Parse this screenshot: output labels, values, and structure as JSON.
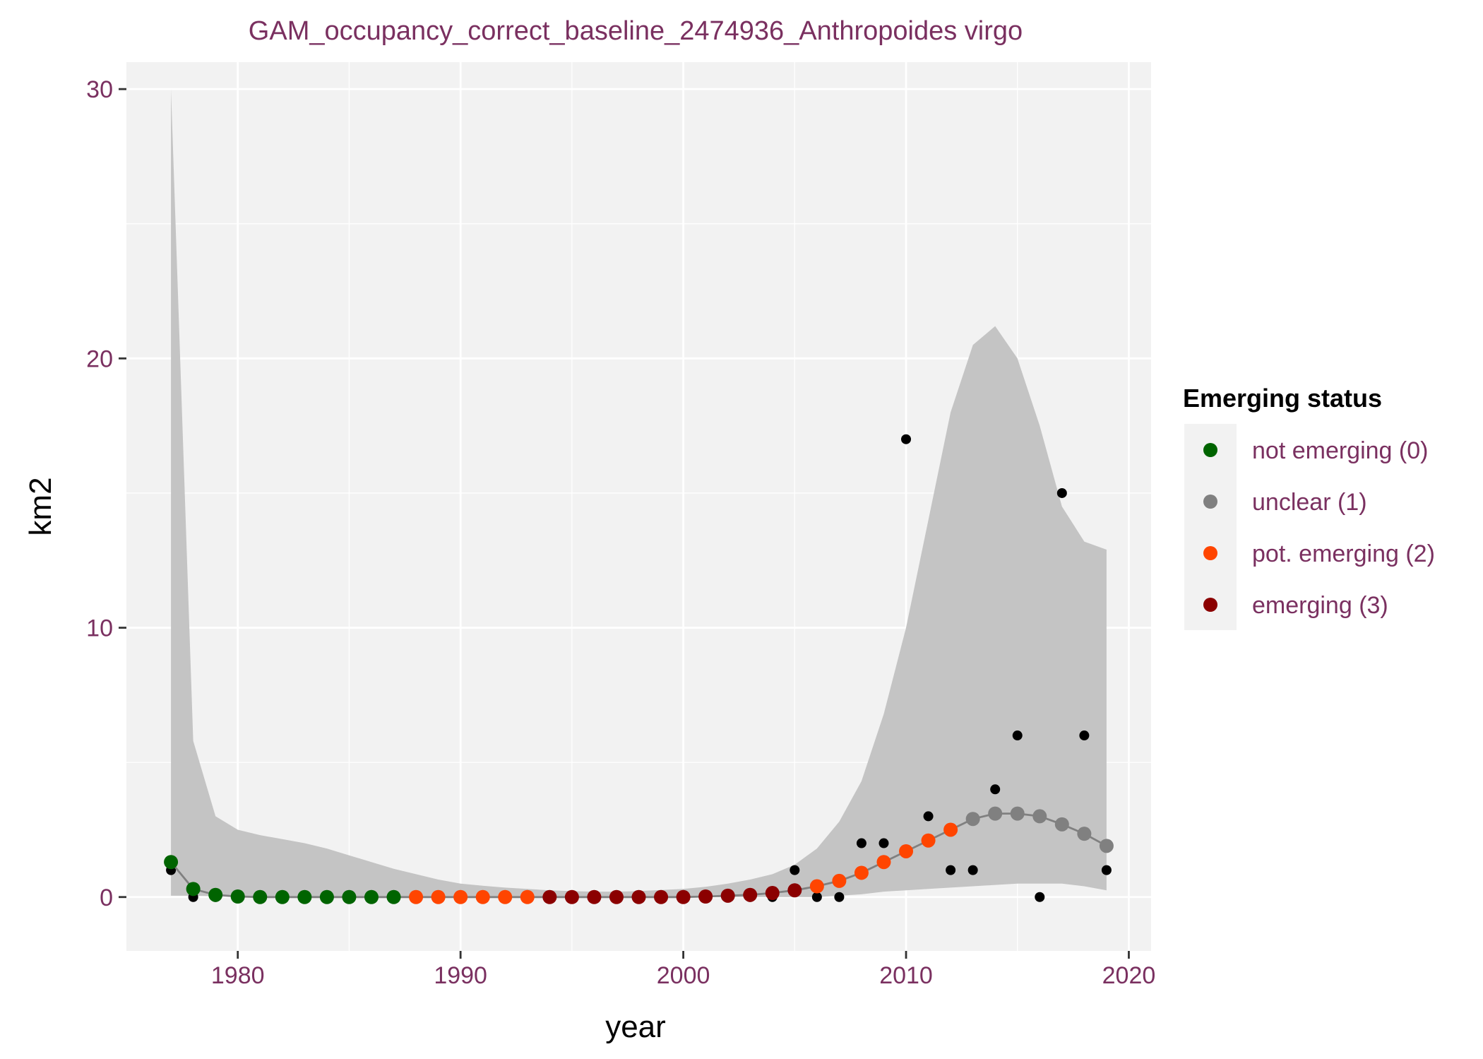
{
  "chart_data": {
    "type": "scatter",
    "title": "GAM_occupancy_correct_baseline_2474936_Anthropoides virgo",
    "xlabel": "year",
    "ylabel": "km2",
    "xlim": [
      1975,
      2021
    ],
    "ylim": [
      -2,
      31
    ],
    "x_ticks": [
      1980,
      1990,
      2000,
      2010,
      2020
    ],
    "y_ticks": [
      0,
      10,
      20,
      30
    ],
    "grid": true,
    "legend_position": "right",
    "legend": {
      "title": "Emerging status",
      "entries": [
        {
          "label": "not emerging (0)",
          "status": 0,
          "color": "#006400"
        },
        {
          "label": "unclear (1)",
          "status": 1,
          "color": "#808080"
        },
        {
          "label": "pot. emerging (2)",
          "status": 2,
          "color": "#ff4500"
        },
        {
          "label": "emerging (3)",
          "status": 3,
          "color": "#8b0000"
        }
      ]
    },
    "colors": {
      "title_text": "#7a3060",
      "tick_text": "#7a3060",
      "panel": "#f2f2f2",
      "grid": "#ffffff",
      "ribbon": "#c4c4c4",
      "fit_line": "#808080",
      "observed": "#000000"
    },
    "observed": {
      "x": [
        1977,
        1978,
        1979,
        1980,
        1981,
        1982,
        1983,
        1984,
        1985,
        1986,
        1987,
        1988,
        1989,
        1990,
        1991,
        1992,
        1993,
        1994,
        1995,
        1996,
        1997,
        1998,
        1999,
        2000,
        2001,
        2002,
        2003,
        2004,
        2005,
        2006,
        2007,
        2008,
        2009,
        2010,
        2011,
        2012,
        2013,
        2014,
        2015,
        2016,
        2017,
        2018,
        2019
      ],
      "y": [
        1,
        0,
        0,
        0,
        0,
        0,
        0,
        0,
        0,
        0,
        0,
        0,
        0,
        0,
        0,
        0,
        0,
        0,
        0,
        0,
        0,
        0,
        0,
        0,
        0,
        0,
        0,
        0,
        1,
        0,
        0,
        2,
        2,
        17,
        3,
        1,
        1,
        4,
        6,
        0,
        15,
        6,
        1
      ]
    },
    "fit": {
      "x": [
        1977,
        1978,
        1979,
        1980,
        1981,
        1982,
        1983,
        1984,
        1985,
        1986,
        1987,
        1988,
        1989,
        1990,
        1991,
        1992,
        1993,
        1994,
        1995,
        1996,
        1997,
        1998,
        1999,
        2000,
        2001,
        2002,
        2003,
        2004,
        2005,
        2006,
        2007,
        2008,
        2009,
        2010,
        2011,
        2012,
        2013,
        2014,
        2015,
        2016,
        2017,
        2018,
        2019
      ],
      "y": [
        1.3,
        0.3,
        0.08,
        0.02,
        0.0,
        0.0,
        0.0,
        0.0,
        0.0,
        0.0,
        0.0,
        0.0,
        0.0,
        0.0,
        0.0,
        0.0,
        0.0,
        0.0,
        0.0,
        0.0,
        0.0,
        0.0,
        0.0,
        0.0,
        0.02,
        0.05,
        0.08,
        0.15,
        0.25,
        0.4,
        0.6,
        0.9,
        1.3,
        1.7,
        2.1,
        2.5,
        2.9,
        3.1,
        3.1,
        3.0,
        2.7,
        2.35,
        1.9
      ],
      "status": [
        0,
        0,
        0,
        0,
        0,
        0,
        0,
        0,
        0,
        0,
        0,
        2,
        2,
        2,
        2,
        2,
        2,
        3,
        3,
        3,
        3,
        3,
        3,
        3,
        3,
        3,
        3,
        3,
        3,
        2,
        2,
        2,
        2,
        2,
        2,
        2,
        1,
        1,
        1,
        1,
        1,
        1,
        1
      ],
      "lower": [
        0.05,
        0.05,
        0.03,
        0.01,
        0.0,
        0.0,
        0.0,
        0.0,
        0.0,
        0.0,
        0.0,
        0.0,
        0.0,
        0.0,
        0.0,
        0.0,
        0.0,
        0.0,
        0.0,
        0.0,
        0.0,
        0.0,
        0.0,
        0.0,
        0.0,
        0.0,
        0.0,
        0.0,
        0.0,
        0.0,
        0.05,
        0.1,
        0.2,
        0.25,
        0.3,
        0.35,
        0.4,
        0.45,
        0.5,
        0.5,
        0.5,
        0.4,
        0.25
      ],
      "upper": [
        30,
        5.8,
        3.0,
        2.5,
        2.3,
        2.15,
        2.0,
        1.8,
        1.55,
        1.3,
        1.05,
        0.85,
        0.65,
        0.5,
        0.42,
        0.35,
        0.3,
        0.25,
        0.22,
        0.2,
        0.2,
        0.22,
        0.26,
        0.3,
        0.38,
        0.5,
        0.65,
        0.85,
        1.2,
        1.8,
        2.8,
        4.3,
        6.8,
        10,
        14,
        18,
        20.5,
        21.2,
        20,
        17.5,
        14.5,
        13.2,
        12.9
      ]
    }
  }
}
